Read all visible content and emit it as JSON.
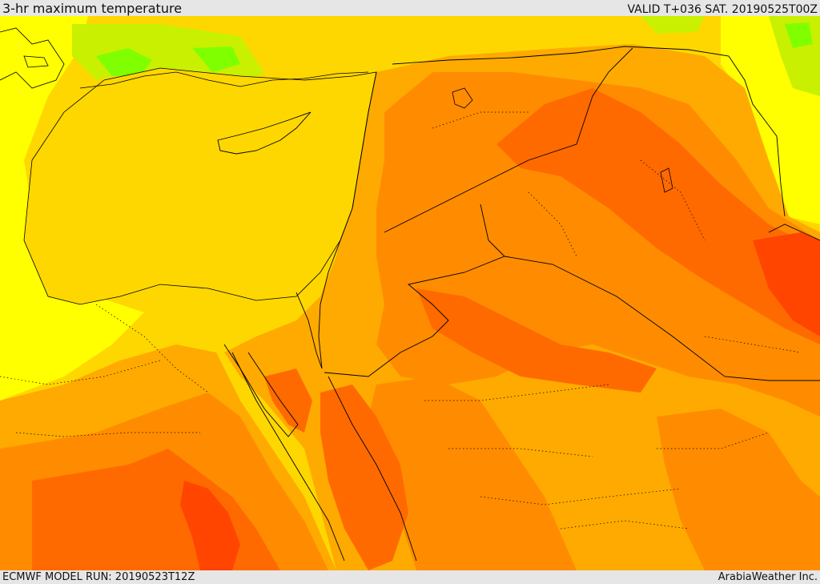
{
  "header": {
    "title": "3-hr maximum temperature",
    "valid": "VALID T+036 SAT. 20190525T00Z"
  },
  "footer": {
    "model_run": "ECMWF MODEL RUN: 20190523T12Z",
    "credit": "ArabiaWeather Inc."
  },
  "map": {
    "region": "Eastern Mediterranean, Levant, Iraq, Arabia",
    "colors": {
      "bar": "#e6e6e6",
      "cool_green": "#80ff00",
      "yellow_green": "#c8f000",
      "yellow": "#ffff00",
      "gold": "#ffd700",
      "light_orange": "#ffaa00",
      "orange": "#ff8c00",
      "dark_orange": "#ff6a00",
      "red_orange": "#ff4500"
    }
  }
}
